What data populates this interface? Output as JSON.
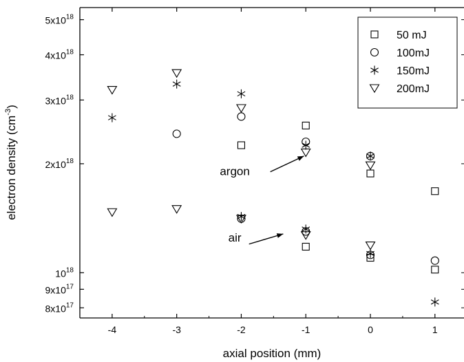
{
  "chart_data": {
    "type": "scatter",
    "xlabel": "axial position (mm)",
    "ylabel": "electron density (cm",
    "ylabel_sup": "-3",
    "ylabel_close": ")",
    "xlim": [
      -4.5,
      1.45
    ],
    "ylim": [
      7.5e+17,
      5.4e+18
    ],
    "yscale": "log",
    "x_ticks": [
      {
        "value": -4,
        "label": "-4"
      },
      {
        "value": -3,
        "label": "-3"
      },
      {
        "value": -2,
        "label": "-2"
      },
      {
        "value": -1,
        "label": "-1"
      },
      {
        "value": 0,
        "label": "0"
      },
      {
        "value": 1,
        "label": "1"
      }
    ],
    "y_ticks": [
      {
        "value": 8e+17,
        "mant": "8x10",
        "exp": "17"
      },
      {
        "value": 9e+17,
        "mant": "9x10",
        "exp": "17"
      },
      {
        "value": 1e+18,
        "mant": "10",
        "exp": "18"
      },
      {
        "value": 2e+18,
        "mant": "2x10",
        "exp": "18"
      },
      {
        "value": 3e+18,
        "mant": "3x10",
        "exp": "18"
      },
      {
        "value": 4e+18,
        "mant": "4x10",
        "exp": "18"
      },
      {
        "value": 5e+18,
        "mant": "5x10",
        "exp": "18"
      }
    ],
    "legend_position": "top-right",
    "series": [
      {
        "name": "50 mJ",
        "marker": "square",
        "points": [
          [
            -2,
            2.25e+18
          ],
          [
            -1,
            2.55e+18
          ],
          [
            0,
            1.88e+18
          ],
          [
            1,
            1.68e+18
          ],
          [
            -1,
            1.18e+18
          ],
          [
            0,
            1.1e+18
          ],
          [
            1,
            1.02e+18
          ]
        ]
      },
      {
        "name": "100mJ",
        "marker": "circle",
        "points": [
          [
            -3,
            2.42e+18
          ],
          [
            -2,
            2.7e+18
          ],
          [
            -1,
            2.3e+18
          ],
          [
            0,
            2.1e+18
          ],
          [
            -2,
            1.41e+18
          ],
          [
            -1,
            1.3e+18
          ],
          [
            0,
            1.12e+18
          ],
          [
            1,
            1.08e+18
          ]
        ]
      },
      {
        "name": "150mJ",
        "marker": "star",
        "points": [
          [
            -4,
            2.68e+18
          ],
          [
            -3,
            3.32e+18
          ],
          [
            -2,
            3.12e+18
          ],
          [
            -1,
            2.25e+18
          ],
          [
            0,
            2.1e+18
          ],
          [
            -2,
            1.43e+18
          ],
          [
            -1,
            1.32e+18
          ],
          [
            0,
            1.13e+18
          ],
          [
            1,
            8.3e+17
          ]
        ]
      },
      {
        "name": "200mJ",
        "marker": "triangle-down",
        "points": [
          [
            -4,
            3.2e+18
          ],
          [
            -3,
            3.56e+18
          ],
          [
            -2,
            2.85e+18
          ],
          [
            -1,
            2.15e+18
          ],
          [
            0,
            1.98e+18
          ],
          [
            -4,
            1.47e+18
          ],
          [
            -3,
            1.5e+18
          ],
          [
            -2,
            1.41e+18
          ],
          [
            -1,
            1.27e+18
          ],
          [
            0,
            1.19e+18
          ]
        ]
      }
    ],
    "annotations": [
      {
        "text": "argon",
        "x": -2.1,
        "y": 1.86e+18,
        "arrow_from": [
          -1.55,
          1.9e+18
        ],
        "arrow_to": [
          -1.03,
          2.1e+18
        ]
      },
      {
        "text": "air",
        "x": -2.1,
        "y": 1.22e+18,
        "arrow_from": [
          -1.88,
          1.2e+18
        ],
        "arrow_to": [
          -1.35,
          1.28e+18
        ]
      }
    ]
  }
}
